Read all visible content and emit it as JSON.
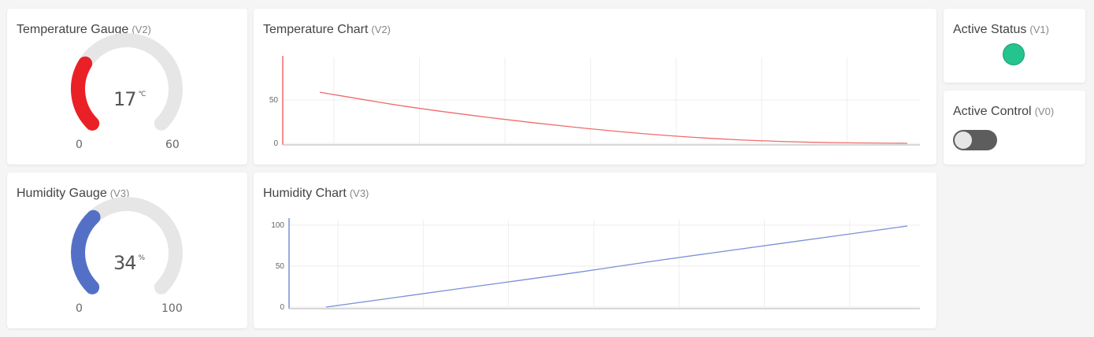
{
  "temperature_gauge": {
    "title": "Temperature Gauge",
    "pin": "(V2)",
    "value": "17",
    "unit": "°C",
    "min": "0",
    "max": "60",
    "level": 0.283,
    "color": "#ea2027"
  },
  "humidity_gauge": {
    "title": "Humidity Gauge",
    "pin": "(V3)",
    "value": "34",
    "unit": "%",
    "min": "0",
    "max": "100",
    "level": 0.34,
    "color": "#5470c6"
  },
  "temperature_chart": {
    "title": "Temperature Chart",
    "pin": "(V2)",
    "color": "#ef6b6b"
  },
  "humidity_chart": {
    "title": "Humidity Chart",
    "pin": "(V3)",
    "color": "#7b8fd6"
  },
  "active_status": {
    "title": "Active Status",
    "pin": "(V1)",
    "led_color": "#23c48e"
  },
  "active_control": {
    "title": "Active Control",
    "pin": "(V0)",
    "state": "off"
  },
  "chart_data": [
    {
      "type": "line",
      "title": "",
      "xlabel": "",
      "ylabel": "",
      "ylim": [
        0,
        100
      ],
      "yticks": [
        "0",
        "50"
      ],
      "x": [
        0,
        1,
        2,
        3,
        4,
        5,
        6,
        7
      ],
      "series": [
        {
          "values": [
            59,
            43,
            30,
            19,
            10,
            4,
            1,
            0
          ]
        }
      ]
    },
    {
      "type": "line",
      "title": "",
      "xlabel": "",
      "ylabel": "",
      "ylim": [
        0,
        100
      ],
      "yticks": [
        "0",
        "50",
        "100"
      ],
      "x": [
        0,
        1,
        2,
        3,
        4,
        5,
        6,
        7
      ],
      "series": [
        {
          "values": [
            0,
            14,
            28,
            42,
            57,
            71,
            85,
            99
          ]
        }
      ]
    }
  ]
}
